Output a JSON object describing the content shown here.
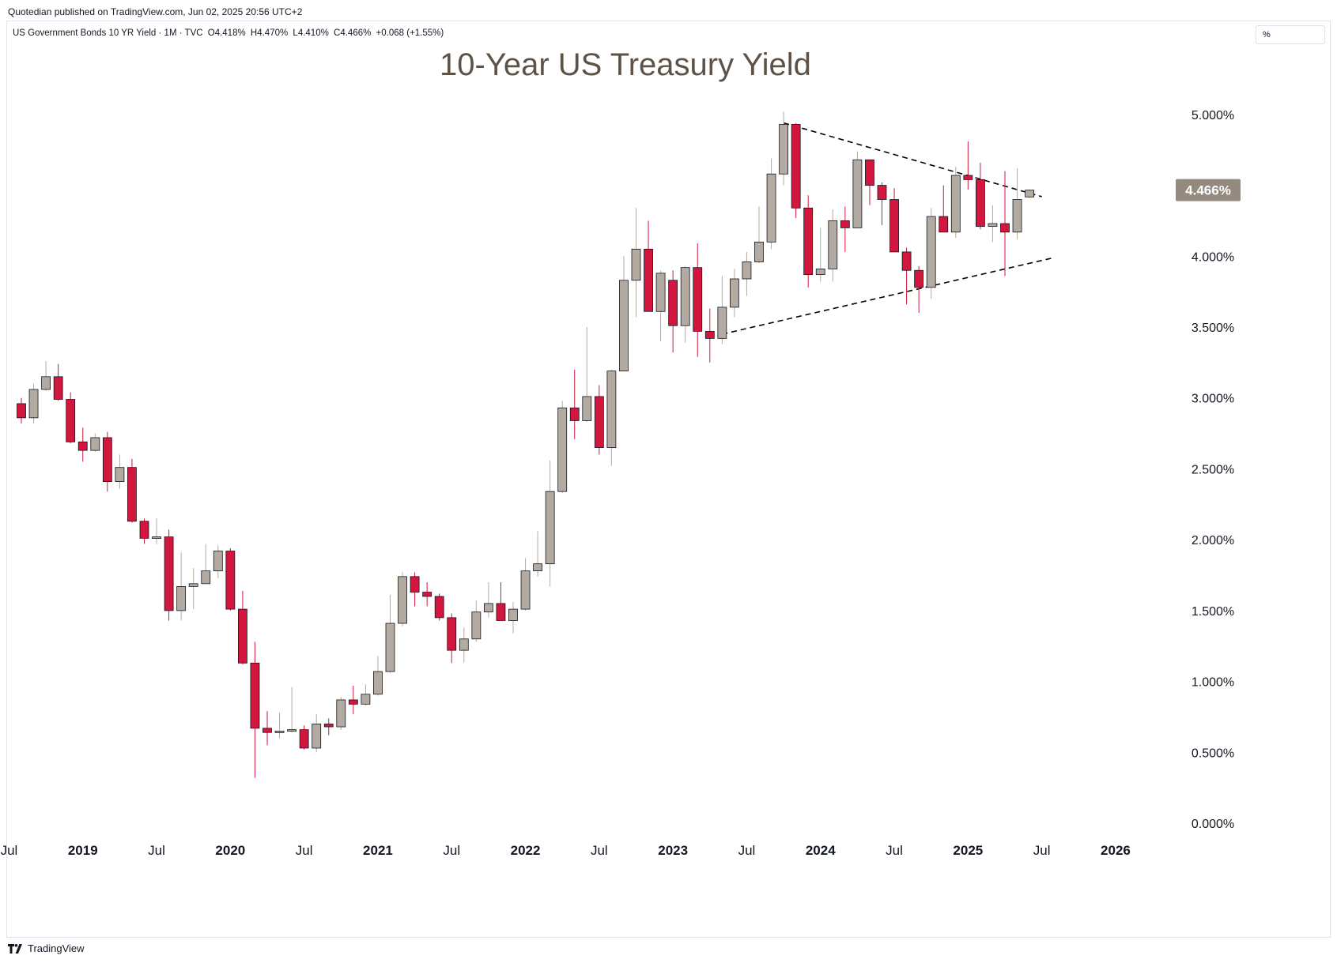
{
  "publisher_line": "Quotedian published on TradingView.com, Jun 02, 2025 20:56 UTC+2",
  "symbol_info": {
    "name": "US Government Bonds 10 YR Yield · 1M · TVC",
    "open": "O4.418%",
    "high": "H4.470%",
    "low": "L4.410%",
    "close": "C4.466%",
    "change": "+0.068 (+1.55%)"
  },
  "unit_toggle": "%",
  "footer": {
    "brand": "TradingView"
  },
  "colors": {
    "up": "#b3aba1",
    "down": "#d2163e",
    "title": "#5d5247",
    "last_price_bg": "#948a7f",
    "trendline": "#000000"
  },
  "chart_data": {
    "type": "candlestick",
    "title": "10-Year US Treasury Yield",
    "ylim": [
      -0.1,
      5.25
    ],
    "y_ticks": [
      "5.000%",
      "4.500%",
      "4.000%",
      "3.500%",
      "3.000%",
      "2.500%",
      "2.000%",
      "1.500%",
      "1.000%",
      "0.500%",
      "0.000%"
    ],
    "y_tick_values": [
      5.0,
      4.5,
      4.0,
      3.5,
      3.0,
      2.5,
      2.0,
      1.5,
      1.0,
      0.5,
      0.0
    ],
    "x_ticks": [
      {
        "label": "Jul",
        "date": "2018-07",
        "bold": false
      },
      {
        "label": "2019",
        "date": "2019-01",
        "bold": true
      },
      {
        "label": "Jul",
        "date": "2019-07",
        "bold": false
      },
      {
        "label": "2020",
        "date": "2020-01",
        "bold": true
      },
      {
        "label": "Jul",
        "date": "2020-07",
        "bold": false
      },
      {
        "label": "2021",
        "date": "2021-01",
        "bold": true
      },
      {
        "label": "Jul",
        "date": "2021-07",
        "bold": false
      },
      {
        "label": "2022",
        "date": "2022-01",
        "bold": true
      },
      {
        "label": "Jul",
        "date": "2022-07",
        "bold": false
      },
      {
        "label": "2023",
        "date": "2023-01",
        "bold": true
      },
      {
        "label": "Jul",
        "date": "2023-07",
        "bold": false
      },
      {
        "label": "2024",
        "date": "2024-01",
        "bold": true
      },
      {
        "label": "Jul",
        "date": "2024-07",
        "bold": false
      },
      {
        "label": "2025",
        "date": "2025-01",
        "bold": true
      },
      {
        "label": "Jul",
        "date": "2025-07",
        "bold": false
      },
      {
        "label": "2026",
        "date": "2026-01",
        "bold": true
      }
    ],
    "last_price_label": "4.466%",
    "candles": [
      [
        "2018-08",
        2.96,
        3.0,
        2.82,
        2.86
      ],
      [
        "2018-09",
        2.86,
        3.1,
        2.82,
        3.06
      ],
      [
        "2018-10",
        3.06,
        3.26,
        3.05,
        3.15
      ],
      [
        "2018-11",
        3.15,
        3.24,
        2.98,
        2.99
      ],
      [
        "2018-12",
        2.99,
        3.04,
        2.68,
        2.69
      ],
      [
        "2019-01",
        2.69,
        2.79,
        2.55,
        2.63
      ],
      [
        "2019-02",
        2.63,
        2.75,
        2.62,
        2.72
      ],
      [
        "2019-03",
        2.72,
        2.76,
        2.34,
        2.41
      ],
      [
        "2019-04",
        2.41,
        2.6,
        2.36,
        2.51
      ],
      [
        "2019-05",
        2.51,
        2.57,
        2.12,
        2.13
      ],
      [
        "2019-06",
        2.13,
        2.15,
        1.97,
        2.01
      ],
      [
        "2019-07",
        2.01,
        2.15,
        1.97,
        2.02
      ],
      [
        "2019-08",
        2.02,
        2.07,
        1.43,
        1.5
      ],
      [
        "2019-09",
        1.5,
        1.91,
        1.43,
        1.67
      ],
      [
        "2019-10",
        1.67,
        1.8,
        1.51,
        1.69
      ],
      [
        "2019-11",
        1.69,
        1.97,
        1.69,
        1.78
      ],
      [
        "2019-12",
        1.78,
        1.96,
        1.73,
        1.92
      ],
      [
        "2020-01",
        1.92,
        1.94,
        1.5,
        1.51
      ],
      [
        "2020-02",
        1.51,
        1.64,
        1.12,
        1.13
      ],
      [
        "2020-03",
        1.13,
        1.28,
        0.32,
        0.67
      ],
      [
        "2020-04",
        0.67,
        0.79,
        0.55,
        0.64
      ],
      [
        "2020-05",
        0.64,
        0.78,
        0.6,
        0.65
      ],
      [
        "2020-06",
        0.65,
        0.96,
        0.64,
        0.66
      ],
      [
        "2020-07",
        0.66,
        0.69,
        0.52,
        0.53
      ],
      [
        "2020-08",
        0.53,
        0.77,
        0.5,
        0.7
      ],
      [
        "2020-09",
        0.7,
        0.74,
        0.62,
        0.68
      ],
      [
        "2020-10",
        0.68,
        0.89,
        0.66,
        0.87
      ],
      [
        "2020-11",
        0.87,
        0.97,
        0.77,
        0.84
      ],
      [
        "2020-12",
        0.84,
        0.98,
        0.83,
        0.91
      ],
      [
        "2021-01",
        0.91,
        1.18,
        0.9,
        1.07
      ],
      [
        "2021-02",
        1.07,
        1.61,
        1.06,
        1.41
      ],
      [
        "2021-03",
        1.41,
        1.77,
        1.39,
        1.74
      ],
      [
        "2021-04",
        1.74,
        1.77,
        1.53,
        1.63
      ],
      [
        "2021-05",
        1.63,
        1.7,
        1.53,
        1.6
      ],
      [
        "2021-06",
        1.6,
        1.62,
        1.43,
        1.45
      ],
      [
        "2021-07",
        1.45,
        1.48,
        1.13,
        1.22
      ],
      [
        "2021-08",
        1.22,
        1.38,
        1.13,
        1.3
      ],
      [
        "2021-09",
        1.3,
        1.57,
        1.28,
        1.49
      ],
      [
        "2021-10",
        1.49,
        1.7,
        1.45,
        1.55
      ],
      [
        "2021-11",
        1.55,
        1.7,
        1.43,
        1.43
      ],
      [
        "2021-12",
        1.43,
        1.56,
        1.34,
        1.51
      ],
      [
        "2022-01",
        1.51,
        1.87,
        1.5,
        1.78
      ],
      [
        "2022-02",
        1.78,
        2.06,
        1.74,
        1.83
      ],
      [
        "2022-03",
        1.83,
        2.56,
        1.67,
        2.34
      ],
      [
        "2022-04",
        2.34,
        2.98,
        2.33,
        2.93
      ],
      [
        "2022-05",
        2.93,
        3.2,
        2.71,
        2.84
      ],
      [
        "2022-06",
        2.84,
        3.5,
        2.83,
        3.01
      ],
      [
        "2022-07",
        3.01,
        3.09,
        2.6,
        2.65
      ],
      [
        "2022-08",
        2.65,
        3.2,
        2.52,
        3.19
      ],
      [
        "2022-09",
        3.19,
        4.0,
        3.19,
        3.83
      ],
      [
        "2022-10",
        3.83,
        4.34,
        3.57,
        4.05
      ],
      [
        "2022-11",
        4.05,
        4.25,
        3.61,
        3.61
      ],
      [
        "2022-12",
        3.61,
        3.9,
        3.4,
        3.88
      ],
      [
        "2023-01",
        3.83,
        3.9,
        3.32,
        3.51
      ],
      [
        "2023-02",
        3.51,
        3.93,
        3.39,
        3.92
      ],
      [
        "2023-03",
        3.92,
        4.09,
        3.29,
        3.47
      ],
      [
        "2023-04",
        3.47,
        3.63,
        3.25,
        3.42
      ],
      [
        "2023-05",
        3.42,
        3.86,
        3.38,
        3.64
      ],
      [
        "2023-06",
        3.64,
        3.91,
        3.57,
        3.84
      ],
      [
        "2023-07",
        3.84,
        4.03,
        3.72,
        3.96
      ],
      [
        "2023-08",
        3.96,
        4.35,
        3.95,
        4.1
      ],
      [
        "2023-09",
        4.1,
        4.69,
        4.05,
        4.58
      ],
      [
        "2023-10",
        4.58,
        5.02,
        4.5,
        4.93
      ],
      [
        "2023-11",
        4.93,
        4.94,
        4.27,
        4.34
      ],
      [
        "2023-12",
        4.34,
        4.43,
        3.78,
        3.87
      ],
      [
        "2024-01",
        3.87,
        4.2,
        3.82,
        3.91
      ],
      [
        "2024-02",
        3.91,
        4.33,
        3.82,
        4.25
      ],
      [
        "2024-03",
        4.25,
        4.35,
        4.03,
        4.2
      ],
      [
        "2024-04",
        4.2,
        4.74,
        4.2,
        4.68
      ],
      [
        "2024-05",
        4.68,
        4.64,
        4.36,
        4.5
      ],
      [
        "2024-06",
        4.5,
        4.52,
        4.22,
        4.4
      ],
      [
        "2024-07",
        4.4,
        4.48,
        4.03,
        4.03
      ],
      [
        "2024-08",
        4.03,
        4.06,
        3.66,
        3.9
      ],
      [
        "2024-09",
        3.9,
        3.93,
        3.6,
        3.78
      ],
      [
        "2024-10",
        3.78,
        4.34,
        3.7,
        4.28
      ],
      [
        "2024-11",
        4.28,
        4.5,
        4.17,
        4.17
      ],
      [
        "2024-12",
        4.17,
        4.63,
        4.13,
        4.57
      ],
      [
        "2025-01",
        4.57,
        4.81,
        4.47,
        4.54
      ],
      [
        "2025-02",
        4.54,
        4.66,
        4.19,
        4.21
      ],
      [
        "2025-03",
        4.21,
        4.36,
        4.1,
        4.23
      ],
      [
        "2025-04",
        4.23,
        4.6,
        3.86,
        4.17
      ],
      [
        "2025-05",
        4.17,
        4.62,
        4.12,
        4.4
      ],
      [
        "2025-06",
        4.418,
        4.47,
        4.41,
        4.466
      ]
    ],
    "trendlines": [
      {
        "style": "dashed",
        "from": [
          "2023-10",
          4.94
        ],
        "to": [
          "2025-07",
          4.42
        ]
      },
      {
        "style": "dashed",
        "from": [
          "2023-05",
          3.45
        ],
        "to": [
          "2025-08",
          3.99
        ]
      }
    ]
  }
}
